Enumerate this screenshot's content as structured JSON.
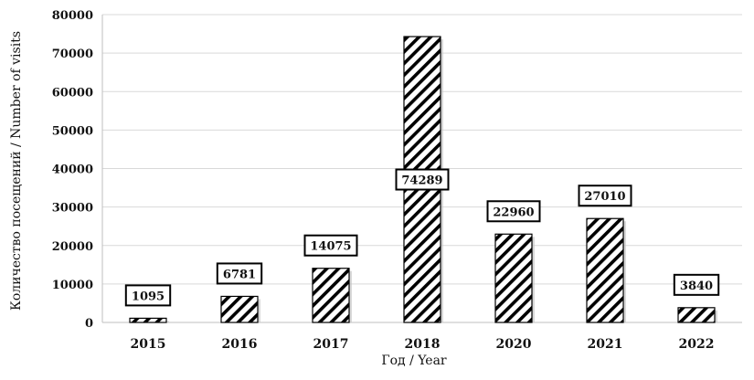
{
  "chart_data": {
    "type": "bar",
    "categories": [
      "2015",
      "2016",
      "2017",
      "2018",
      "2020",
      "2021",
      "2022"
    ],
    "values": [
      1095,
      6781,
      14075,
      74289,
      22960,
      27010,
      3840
    ],
    "data_labels": [
      "1095",
      "6781",
      "14075",
      "74289",
      "22960",
      "27010",
      "3840"
    ],
    "xlabel": "Год / Year",
    "ylabel": "Количество посещений / Number of visits",
    "ylim": [
      0,
      80000
    ],
    "yticks": [
      0,
      10000,
      20000,
      30000,
      40000,
      50000,
      60000,
      70000,
      80000
    ],
    "ytick_labels": [
      "0",
      "10000",
      "20000",
      "30000",
      "40000",
      "50000",
      "60000",
      "70000",
      "80000"
    ],
    "grid": true,
    "legend": "none",
    "bar_fill": "hatched-diagonal",
    "colors": {
      "bar_stroke": "#000000",
      "hatch": "#000000",
      "grid": "#d9d9d9",
      "bar_shadow": "#bfbfbf"
    }
  }
}
